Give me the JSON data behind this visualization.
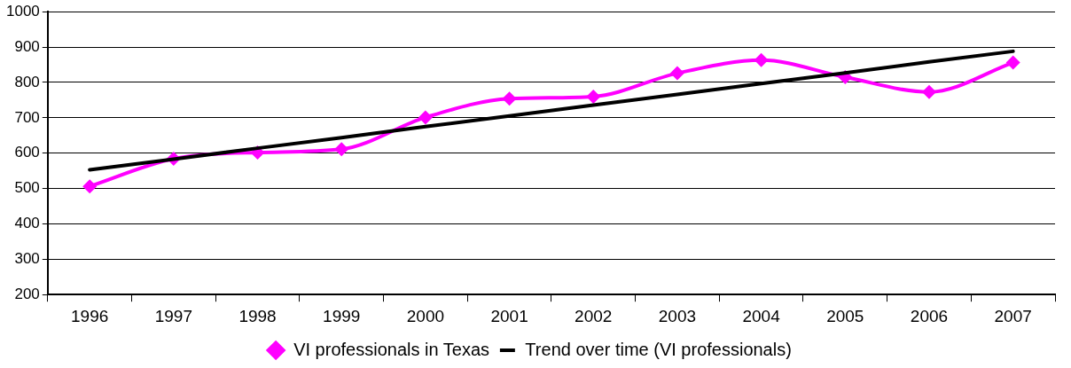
{
  "chart_data": {
    "type": "line",
    "categories": [
      "1996",
      "1997",
      "1998",
      "1999",
      "2000",
      "2001",
      "2002",
      "2003",
      "2004",
      "2005",
      "2006",
      "2007"
    ],
    "series": [
      {
        "name": "VI professionals in Texas",
        "color": "#ff00ff",
        "marker": "diamond",
        "values": [
          506,
          584,
          602,
          611,
          701,
          754,
          760,
          826,
          863,
          815,
          773,
          856
        ]
      },
      {
        "name": "Trend over time (VI professionals)",
        "color": "#000000",
        "marker": "none",
        "values": [
          553,
          583,
          614,
          644,
          675,
          705,
          736,
          766,
          797,
          827,
          858,
          888
        ]
      }
    ],
    "ylim": [
      200,
      1000
    ],
    "yticks": [
      200,
      300,
      400,
      500,
      600,
      700,
      800,
      900,
      1000
    ],
    "grid": "y",
    "legend": "bottom",
    "line_style": "solid"
  }
}
